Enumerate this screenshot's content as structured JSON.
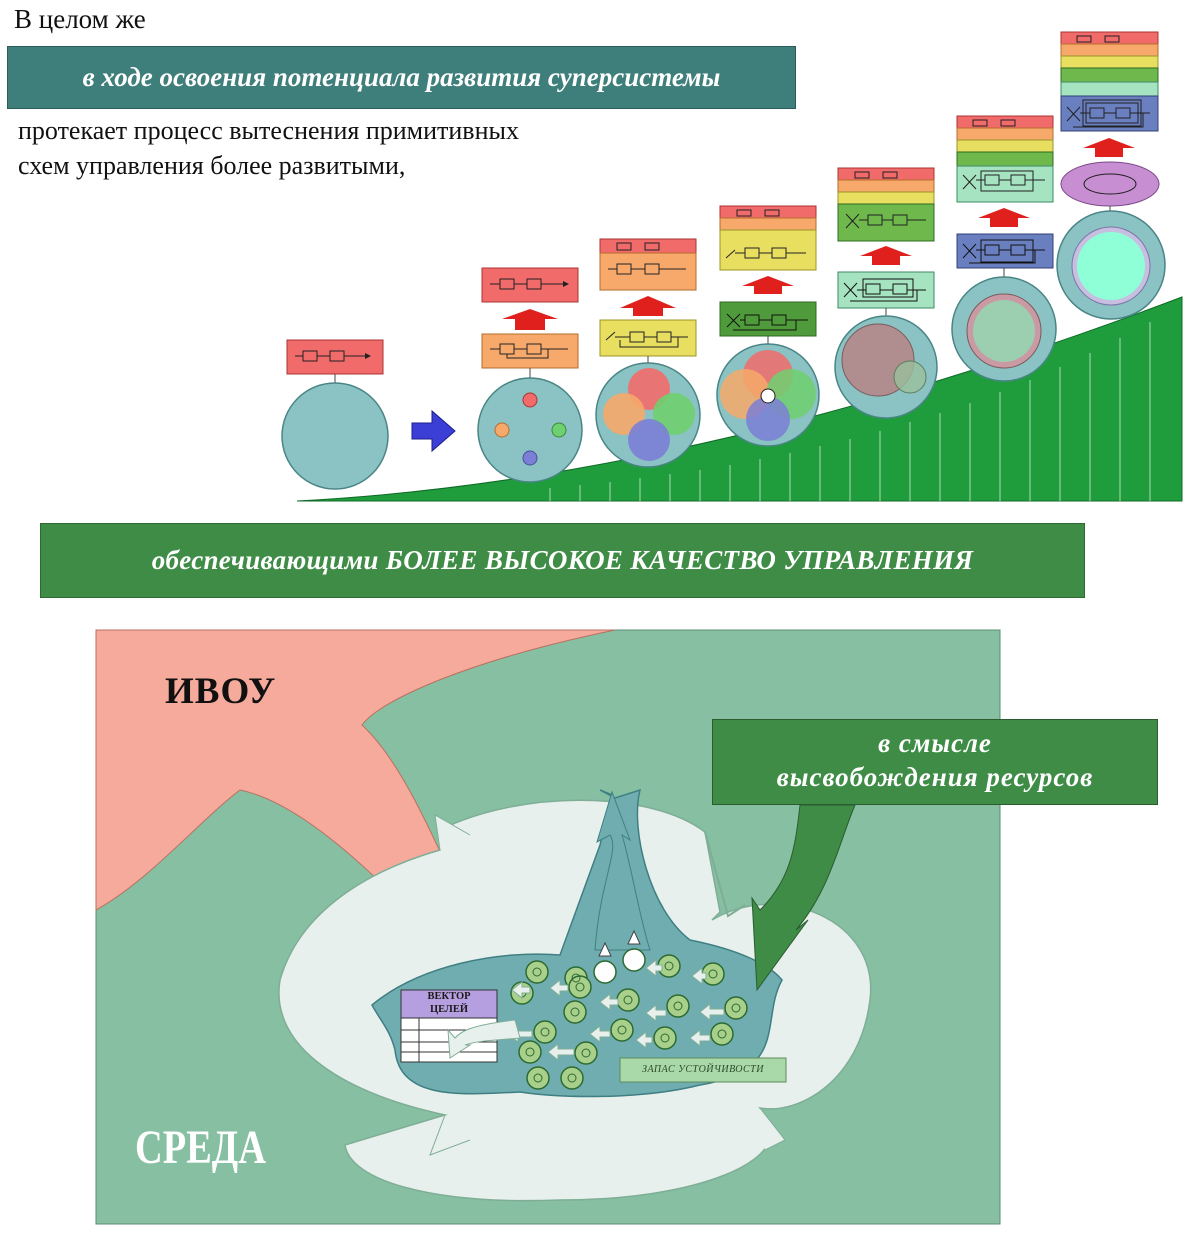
{
  "intro": "В целом же",
  "banner1": "в ходе освоения потенциала развития суперсистемы",
  "paragraph": {
    "line1": "протекает процесс вытеснения примитивных",
    "line2": "схем управления более развитыми,"
  },
  "banner2": "обеспечивающими БОЛЕЕ ВЫСОКОЕ КАЧЕСТВО УПРАВЛЕНИЯ",
  "lower": {
    "ivou": "ИВОУ",
    "callout": {
      "line1": "в смысле",
      "line2": "высвобождения ресурсов"
    },
    "sreda": "СРЕДА",
    "vector_title": {
      "line1": "ВЕКТОР",
      "line2": "ЦЕЛЕЙ"
    },
    "zapas": "ЗАПАС УСТОЙЧИВОСТИ"
  },
  "colors": {
    "red": "#f26b6b",
    "orange": "#f6a96a",
    "yellow": "#e8de60",
    "green": "#6fb94c",
    "lightgreen": "#a6e3c0",
    "blue": "#6a7fbf",
    "teal": "#8bc2c3",
    "darkgreen": "#3f8c47"
  }
}
